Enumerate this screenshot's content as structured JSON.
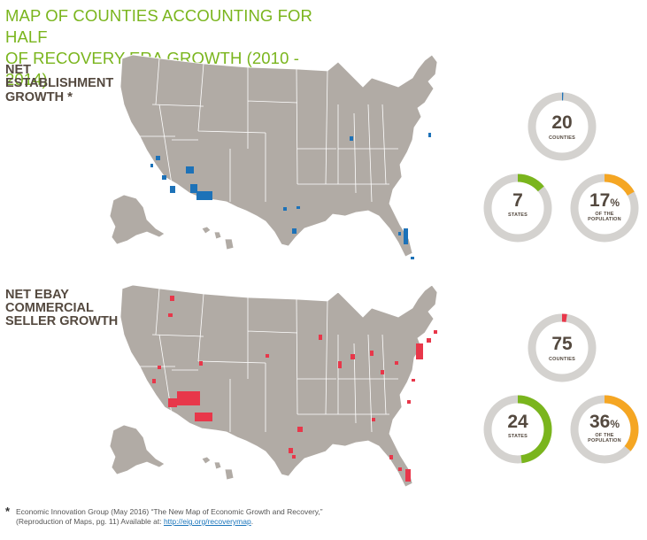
{
  "title_line1": "MAP OF COUNTIES ACCOUNTING FOR HALF",
  "title_line2": "OF RECOVERY-ERA GROWTH (2010 - 2014)",
  "colors": {
    "title_green": "#7ab51d",
    "map_gray": "#b1aba5",
    "blue_county": "#1d72b8",
    "red_county": "#e8374a",
    "donut_track": "#d4d2cf",
    "green_arc": "#7ab51d",
    "orange_arc": "#f5a623"
  },
  "sections": [
    {
      "label_lines": [
        "NET",
        "ESTABLISHMENT",
        "GROWTH"
      ],
      "asterisk": "*",
      "map_icon": "us-map-establishment-growth",
      "highlight_color": "#1d72b8",
      "counties": {
        "value": "20",
        "caption": "COUNTIES",
        "fraction": 0.006
      },
      "states": {
        "value": "7",
        "caption": "STATES",
        "fraction": 0.14
      },
      "population": {
        "value": "17",
        "unit": "%",
        "caption_line1": "OF THE",
        "caption_line2": "POPULATION",
        "fraction": 0.17
      }
    },
    {
      "label_lines": [
        "NET EBAY",
        "COMMERCIAL",
        "SELLER GROWTH"
      ],
      "asterisk": "",
      "map_icon": "us-map-ebay-seller-growth",
      "highlight_color": "#e8374a",
      "counties": {
        "value": "75",
        "caption": "COUNTIES",
        "fraction": 0.024
      },
      "states": {
        "value": "24",
        "caption": "STATES",
        "fraction": 0.48
      },
      "population": {
        "value": "36",
        "unit": "%",
        "caption_line1": "OF THE",
        "caption_line2": "POPULATION",
        "fraction": 0.36
      }
    }
  ],
  "footnote": {
    "star": "*",
    "text": "Economic Innovation Group (May 2016) “The New Map of Economic Growth and Recovery,” (Reproduction of Maps, pg. 11) Available at: ",
    "link_text": "http://eig.org/recoverymap",
    "trailing": "."
  }
}
